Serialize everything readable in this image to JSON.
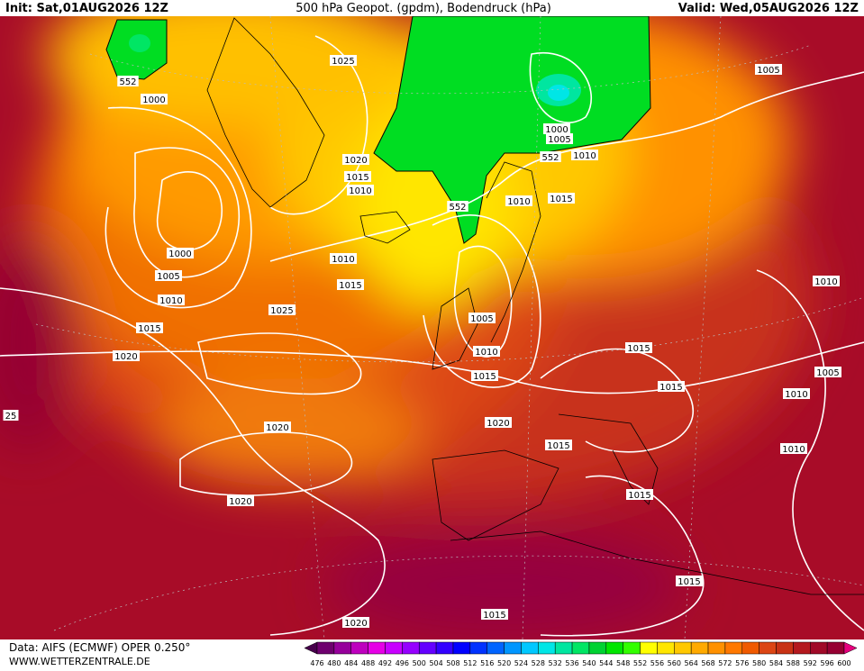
{
  "header": {
    "init": "Init: Sat,01AUG2026 12Z",
    "title": "500 hPa Geopot. (gpdm), Bodendruck (hPa)",
    "valid": "Valid: Wed,05AUG2026 12Z"
  },
  "footer": {
    "source": "Data: AIFS (ECMWF) OPER 0.250°",
    "site": "WWW.WETTERZENTRALE.DE"
  },
  "colorbar": {
    "ticks": [
      476,
      480,
      484,
      488,
      492,
      496,
      500,
      504,
      508,
      512,
      516,
      520,
      524,
      528,
      532,
      536,
      540,
      544,
      548,
      552,
      556,
      560,
      564,
      568,
      572,
      576,
      580,
      584,
      588,
      592,
      596,
      600
    ],
    "colors": [
      "#46004b",
      "#6e006e",
      "#96009b",
      "#be00be",
      "#e600e6",
      "#c800ff",
      "#9600ff",
      "#6400ff",
      "#3200ff",
      "#0000ff",
      "#0032ff",
      "#0064ff",
      "#0096ff",
      "#00c8ff",
      "#00e6e6",
      "#00e6a0",
      "#00e664",
      "#00d232",
      "#00e600",
      "#32ff00",
      "#ffff00",
      "#ffe600",
      "#ffc800",
      "#ffaa00",
      "#ff9100",
      "#ff7800",
      "#f05a00",
      "#dc4614",
      "#c83214",
      "#b4191e",
      "#a00a28",
      "#960032",
      "#e6007d"
    ]
  },
  "isobar_labels": [
    "552",
    "1000",
    "1025",
    "1020",
    "1015",
    "1010",
    "1000",
    "1005",
    "552",
    "1010",
    "1005",
    "552",
    "1010",
    "1015",
    "1000",
    "1005",
    "1010",
    "1010",
    "1015",
    "1015",
    "1025",
    "1005",
    "1010",
    "1015",
    "1020",
    "25",
    "1020",
    "1015",
    "1015",
    "1015",
    "1010",
    "1005",
    "1010",
    "1010",
    "1020",
    "1020",
    "1015",
    "1015",
    "1015",
    "1020"
  ]
}
